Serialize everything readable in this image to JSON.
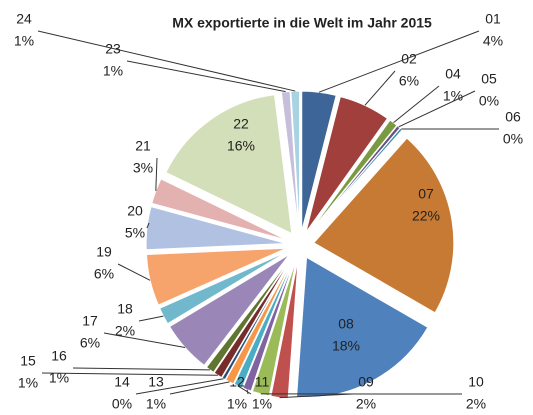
{
  "chart_data": {
    "type": "pie",
    "title": "MX exportierte in die Welt im Jahr 2015",
    "categories": [
      "01",
      "02",
      "04",
      "05",
      "06",
      "07",
      "08",
      "09",
      "10",
      "11",
      "12",
      "13",
      "14",
      "15",
      "16",
      "17",
      "18",
      "19",
      "20",
      "21",
      "22",
      "23",
      "24"
    ],
    "values": [
      4,
      6,
      1,
      0.4,
      0.3,
      22,
      18,
      2,
      2,
      1,
      1,
      1,
      0.4,
      1,
      1,
      6,
      2,
      6,
      5,
      3,
      16,
      1,
      1
    ],
    "value_labels": [
      "4%",
      "6%",
      "1%",
      "0%",
      "0%",
      "22%",
      "18%",
      "2%",
      "2%",
      "1%",
      "1%",
      "1%",
      "0%",
      "1%",
      "1%",
      "6%",
      "2%",
      "6%",
      "5%",
      "3%",
      "16%",
      "1%",
      "1%"
    ],
    "colors": [
      "#3e6597",
      "#a03f3c",
      "#7a9a41",
      "#664f86",
      "#3a8ea9",
      "#c77a33",
      "#4f81bd",
      "#c0504d",
      "#9bbb59",
      "#8064a2",
      "#4bacc6",
      "#f79646",
      "#2c4d75",
      "#772c2a",
      "#5f7530",
      "#9a87b8",
      "#72b8cc",
      "#f7a36c",
      "#b1c1e1",
      "#e3b1b0",
      "#d3dfb8",
      "#c7bedb",
      "#a9d3e2"
    ]
  }
}
